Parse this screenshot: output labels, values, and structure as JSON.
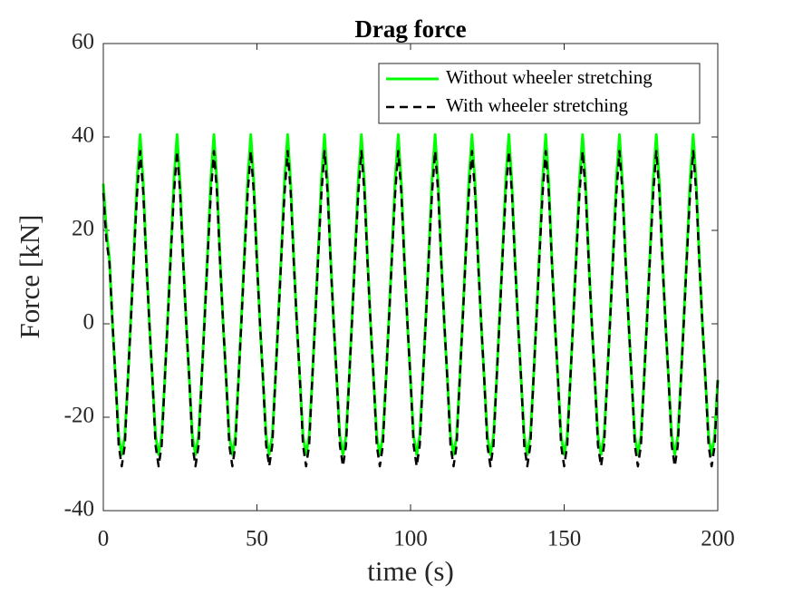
{
  "chart_data": {
    "type": "line",
    "title": "Drag force",
    "x_label": "time (s)",
    "y_label": "Force [kN]",
    "x": [
      0,
      1,
      2,
      3,
      4,
      5,
      6,
      7,
      8,
      9,
      10,
      11,
      12,
      13,
      14,
      15,
      16,
      17,
      18,
      19,
      20,
      21,
      22,
      23,
      24,
      25,
      26,
      27,
      28,
      29,
      30,
      31,
      32,
      33,
      34,
      35,
      36,
      37,
      38,
      39,
      40,
      41,
      42,
      43,
      44,
      45,
      46,
      47,
      48,
      49,
      50,
      51,
      52,
      53,
      54,
      55,
      56,
      57,
      58,
      59,
      60,
      61,
      62,
      63,
      64,
      65,
      66,
      67,
      68,
      69,
      70,
      71,
      72,
      73,
      74,
      75,
      76,
      77,
      78,
      79,
      80,
      81,
      82,
      83,
      84,
      85,
      86,
      87,
      88,
      89,
      90,
      91,
      92,
      93,
      94,
      95,
      96,
      97,
      98,
      99,
      100,
      101,
      102,
      103,
      104,
      105,
      106,
      107,
      108,
      109,
      110,
      111,
      112,
      113,
      114,
      115,
      116,
      117,
      118,
      119,
      120,
      121,
      122,
      123,
      124,
      125,
      126,
      127,
      128,
      129,
      130,
      131,
      132,
      133,
      134,
      135,
      136,
      137,
      138,
      139,
      140,
      141,
      142,
      143,
      144,
      145,
      146,
      147,
      148,
      149,
      150,
      151,
      152,
      153,
      154,
      155,
      156,
      157,
      158,
      159,
      160,
      161,
      162,
      163,
      164,
      165,
      166,
      167,
      168,
      169,
      170,
      171,
      172,
      173,
      174,
      175,
      176,
      177,
      178,
      179,
      180,
      181,
      182,
      183,
      184,
      185,
      186,
      187,
      188,
      189,
      190,
      191,
      192,
      193,
      194,
      195,
      196,
      197,
      198,
      199,
      200
    ],
    "series": [
      {
        "name": "Without wheeler stretching",
        "color": "#00ff00",
        "dash": false,
        "values": [
          30,
          20,
          14,
          0,
          -12,
          -24,
          -28,
          -24,
          -12,
          2,
          16,
          31,
          40.5,
          30,
          14,
          0,
          -12,
          -24,
          -28,
          -24,
          -12,
          2,
          16,
          31,
          40.5,
          30,
          14,
          0,
          -12,
          -24,
          -28,
          -24,
          -12,
          2,
          16,
          31,
          40.5,
          30,
          14,
          0,
          -12,
          -24,
          -28,
          -24,
          -12,
          2,
          16,
          31,
          40.5,
          30,
          14,
          0,
          -12,
          -24,
          -28,
          -24,
          -12,
          2,
          16,
          31,
          40.5,
          30,
          14,
          0,
          -12,
          -24,
          -28,
          -24,
          -12,
          2,
          16,
          31,
          40.5,
          30,
          14,
          0,
          -12,
          -24,
          -28,
          -24,
          -12,
          2,
          16,
          31,
          40.5,
          30,
          14,
          0,
          -12,
          -24,
          -28,
          -24,
          -12,
          2,
          16,
          31,
          40.5,
          30,
          14,
          0,
          -12,
          -24,
          -28,
          -24,
          -12,
          2,
          16,
          31,
          40.5,
          30,
          14,
          0,
          -12,
          -24,
          -28,
          -24,
          -12,
          2,
          16,
          31,
          40.5,
          30,
          14,
          0,
          -12,
          -24,
          -28,
          -24,
          -12,
          2,
          16,
          31,
          40.5,
          30,
          14,
          0,
          -12,
          -24,
          -28,
          -24,
          -12,
          2,
          16,
          31,
          40.5,
          30,
          14,
          0,
          -12,
          -24,
          -28,
          -24,
          -12,
          2,
          16,
          31,
          40.5,
          30,
          14,
          0,
          -12,
          -24,
          -28,
          -24,
          -12,
          2,
          16,
          31,
          40.5,
          30,
          14,
          0,
          -12,
          -24,
          -28,
          -24,
          -12,
          2,
          16,
          31,
          40.5,
          30,
          14,
          0,
          -12,
          -24,
          -28,
          -24,
          -12,
          2,
          16,
          31,
          40.5,
          30,
          14,
          0,
          -12,
          -24,
          -28,
          -24,
          -12
        ]
      },
      {
        "name": "With wheeler stretching",
        "color": "#000000",
        "dash": true,
        "values": [
          28,
          18,
          13,
          0,
          -12,
          -26,
          -30.5,
          -26,
          -12,
          1,
          15,
          28,
          37,
          28,
          13,
          0,
          -12,
          -26,
          -30.5,
          -26,
          -12,
          1,
          15,
          28,
          37,
          28,
          13,
          0,
          -12,
          -26,
          -30.5,
          -26,
          -12,
          1,
          15,
          28,
          37,
          28,
          13,
          0,
          -12,
          -26,
          -30.5,
          -26,
          -12,
          1,
          15,
          28,
          37,
          28,
          13,
          0,
          -12,
          -26,
          -30.5,
          -26,
          -12,
          1,
          15,
          28,
          37,
          28,
          13,
          0,
          -12,
          -26,
          -30.5,
          -26,
          -12,
          1,
          15,
          28,
          37,
          28,
          13,
          0,
          -12,
          -26,
          -30.5,
          -26,
          -12,
          1,
          15,
          28,
          37,
          28,
          13,
          0,
          -12,
          -26,
          -30.5,
          -26,
          -12,
          1,
          15,
          28,
          37,
          28,
          13,
          0,
          -12,
          -26,
          -30.5,
          -26,
          -12,
          1,
          15,
          28,
          37,
          28,
          13,
          0,
          -12,
          -26,
          -30.5,
          -26,
          -12,
          1,
          15,
          28,
          37,
          28,
          13,
          0,
          -12,
          -26,
          -30.5,
          -26,
          -12,
          1,
          15,
          28,
          37,
          28,
          13,
          0,
          -12,
          -26,
          -30.5,
          -26,
          -12,
          1,
          15,
          28,
          37,
          28,
          13,
          0,
          -12,
          -26,
          -30.5,
          -26,
          -12,
          1,
          15,
          28,
          37,
          28,
          13,
          0,
          -12,
          -26,
          -30.5,
          -26,
          -12,
          1,
          15,
          28,
          37,
          28,
          13,
          0,
          -12,
          -26,
          -30.5,
          -26,
          -12,
          1,
          15,
          28,
          37,
          28,
          13,
          0,
          -12,
          -26,
          -30.5,
          -26,
          -12,
          1,
          15,
          28,
          37,
          28,
          13,
          0,
          -12,
          -26,
          -30.5,
          -26,
          -12
        ]
      }
    ],
    "xlim": [
      0,
      200
    ],
    "xticks": [
      0,
      50,
      100,
      150,
      200
    ],
    "ylim": [
      -40,
      60
    ],
    "yticks": [
      -40,
      -20,
      0,
      20,
      40,
      60
    ],
    "grid": false,
    "legend": "top-right"
  }
}
